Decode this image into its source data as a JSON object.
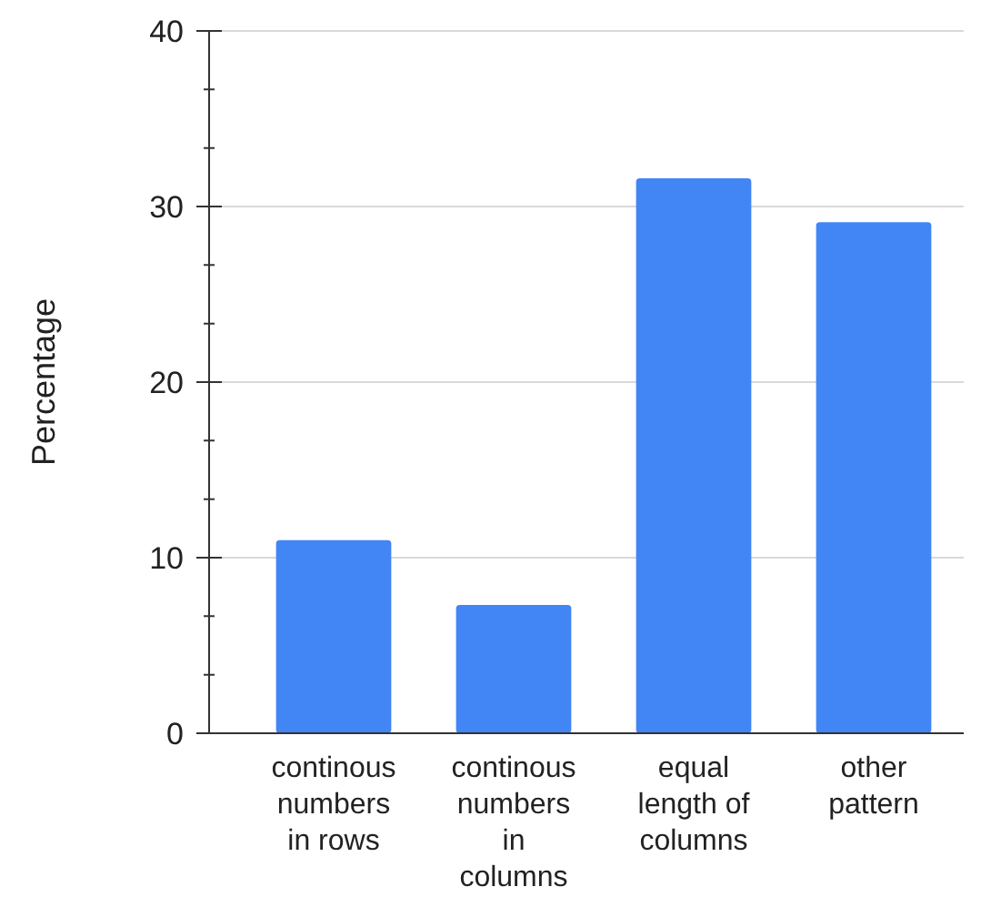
{
  "chart_data": {
    "type": "bar",
    "ylabel": "Percentage",
    "categories": [
      "continous numbers in rows",
      "continous numbers in columns",
      "equal length of columns",
      "other pattern"
    ],
    "values": [
      11.0,
      7.3,
      31.6,
      29.1
    ],
    "color": "#4285f4",
    "ylim": [
      0,
      40
    ],
    "yticks": [
      0,
      {
        "value": 3.33,
        "label": null
      },
      {
        "value": 6.67,
        "label": null
      },
      10,
      {
        "value": 13.33,
        "label": null
      },
      {
        "value": 16.67,
        "label": null
      },
      20,
      {
        "value": 23.33,
        "label": null
      },
      {
        "value": 26.67,
        "label": null
      },
      30,
      {
        "value": 33.33,
        "label": null
      },
      {
        "value": 36.67,
        "label": null
      },
      40
    ],
    "grid": "y"
  }
}
